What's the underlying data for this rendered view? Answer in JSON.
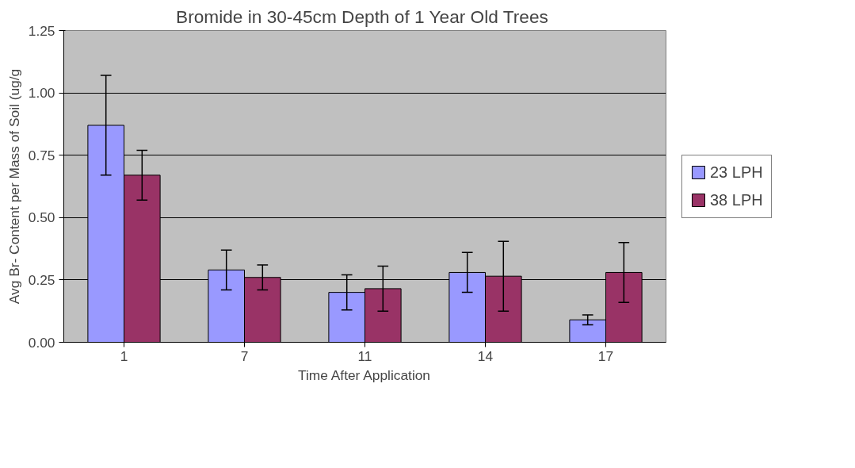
{
  "chart_data": {
    "type": "bar",
    "title": "Bromide in 30-45cm Depth of  1 Year Old Trees",
    "xlabel": "Time After Application",
    "ylabel": "Avg Br- Content per Mass of Soil (ug/g",
    "categories": [
      "1",
      "7",
      "11",
      "14",
      "17"
    ],
    "series": [
      {
        "name": "23 LPH",
        "color": "#9999ff",
        "values": [
          0.87,
          0.29,
          0.2,
          0.28,
          0.09
        ],
        "errors": [
          0.2,
          0.08,
          0.07,
          0.08,
          0.02
        ]
      },
      {
        "name": "38 LPH",
        "color": "#993366",
        "values": [
          0.67,
          0.26,
          0.215,
          0.265,
          0.28
        ],
        "errors": [
          0.1,
          0.05,
          0.09,
          0.14,
          0.12
        ]
      }
    ],
    "ylim": [
      0,
      1.25
    ],
    "yticks": [
      {
        "value": 0,
        "label": "0.00"
      },
      {
        "value": 0.25,
        "label": "0.25"
      },
      {
        "value": 0.5,
        "label": "0.50"
      },
      {
        "value": 0.75,
        "label": "0.75"
      },
      {
        "value": 1,
        "label": "1.00"
      },
      {
        "value": 1.25,
        "label": "1.25"
      }
    ],
    "grid": "y",
    "legend": "right"
  }
}
